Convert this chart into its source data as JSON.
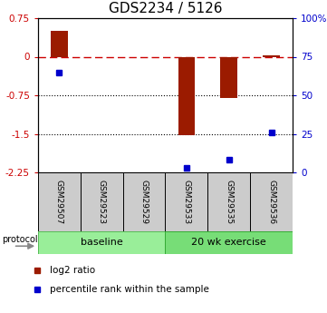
{
  "title": "GDS2234 / 5126",
  "samples": [
    "GSM29507",
    "GSM29523",
    "GSM29529",
    "GSM29533",
    "GSM29535",
    "GSM29536"
  ],
  "log2_ratio": [
    0.5,
    0.0,
    0.0,
    -1.53,
    -0.8,
    0.02
  ],
  "percentile_per_sample": [
    65,
    null,
    null,
    3,
    8,
    26
  ],
  "ylim_left": [
    -2.25,
    0.75
  ],
  "ylim_right": [
    0,
    100
  ],
  "bar_color": "#9B1B00",
  "dot_color": "#0000CC",
  "group1_label": "baseline",
  "group1_color": "#99EE99",
  "group2_label": "20 wk exercise",
  "group2_color": "#77DD77",
  "dotted_lines": [
    -0.75,
    -1.5
  ],
  "left_ticks": [
    0.75,
    0,
    -0.75,
    -1.5,
    -2.25
  ],
  "right_ticks": [
    100,
    75,
    50,
    25,
    0
  ],
  "legend_log2": "log2 ratio",
  "legend_pct": "percentile rank within the sample",
  "background_color": "#ffffff",
  "title_fontsize": 11,
  "protocol_label": "protocol"
}
